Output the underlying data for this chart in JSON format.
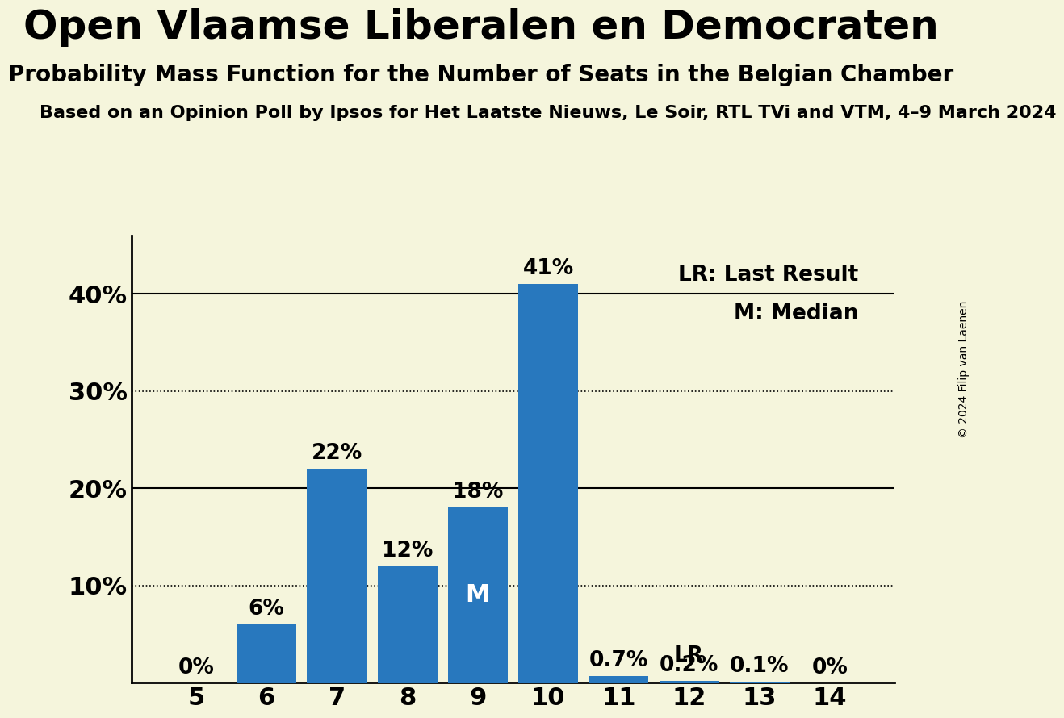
{
  "title": "Open Vlaamse Liberalen en Democraten",
  "subtitle": "Probability Mass Function for the Number of Seats in the Belgian Chamber",
  "source_line": "Based on an Opinion Poll by Ipsos for Het Laatste Nieuws, Le Soir, RTL TVi and VTM, 4–9 March 2024",
  "copyright": "© 2024 Filip van Laenen",
  "categories": [
    5,
    6,
    7,
    8,
    9,
    10,
    11,
    12,
    13,
    14
  ],
  "values": [
    0.0,
    6.0,
    22.0,
    12.0,
    18.0,
    41.0,
    0.7,
    0.2,
    0.1,
    0.0
  ],
  "bar_color": "#2878be",
  "background_color": "#f5f5dc",
  "yticks": [
    0,
    10,
    20,
    30,
    40
  ],
  "ylim": [
    0,
    46
  ],
  "dotted_lines": [
    10,
    30
  ],
  "solid_lines": [
    20,
    40
  ],
  "median_seat": 9,
  "last_result_seat": 12,
  "legend_lr": "LR: Last Result",
  "legend_m": "M: Median",
  "title_fontsize": 36,
  "subtitle_fontsize": 20,
  "source_fontsize": 16,
  "bar_label_fontsize": 19,
  "tick_fontsize": 22,
  "legend_fontsize": 19,
  "copyright_fontsize": 10
}
